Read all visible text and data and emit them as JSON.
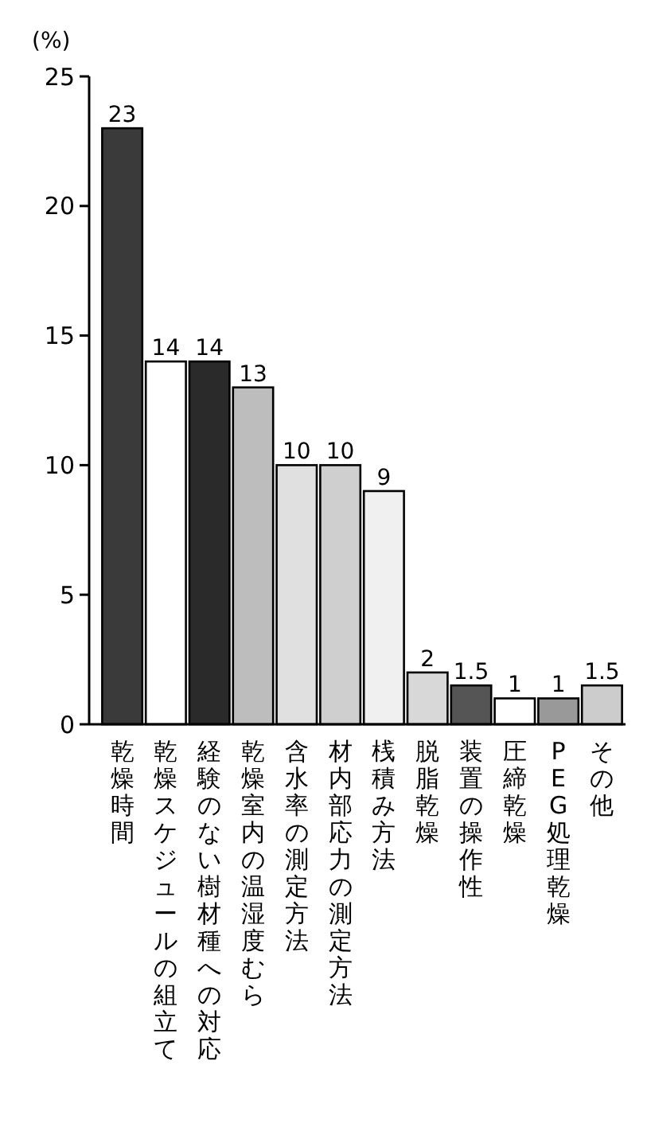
{
  "chart_data": {
    "type": "bar",
    "ylabel": "(%)",
    "categories": [
      "乾燥時間",
      "乾燥スケジュールの組立て",
      "経験のない樹材種への対応",
      "乾燥室内の温湿度むら",
      "含水率の測定方法",
      "材内部応力の測定方法",
      "桟積み方法",
      "脱脂乾燥",
      "装置の操作性",
      "圧締乾燥",
      "PEG処理乾燥",
      "その他"
    ],
    "values": [
      23,
      14,
      14,
      13,
      10,
      10,
      9,
      2,
      1.5,
      1,
      1,
      1.5
    ],
    "colors": [
      "#3a3a3a",
      "#ffffff",
      "#2a2a2a",
      "#bdbdbd",
      "#e0e0e0",
      "#cfcfcf",
      "#f0f0f0",
      "#d8d8d8",
      "#555555",
      "#ffffff",
      "#999999",
      "#cccccc"
    ],
    "ylim": [
      0,
      25
    ],
    "yticks": [
      0,
      5,
      10,
      15,
      20,
      25
    ],
    "data_labels": true,
    "grid": false
  }
}
